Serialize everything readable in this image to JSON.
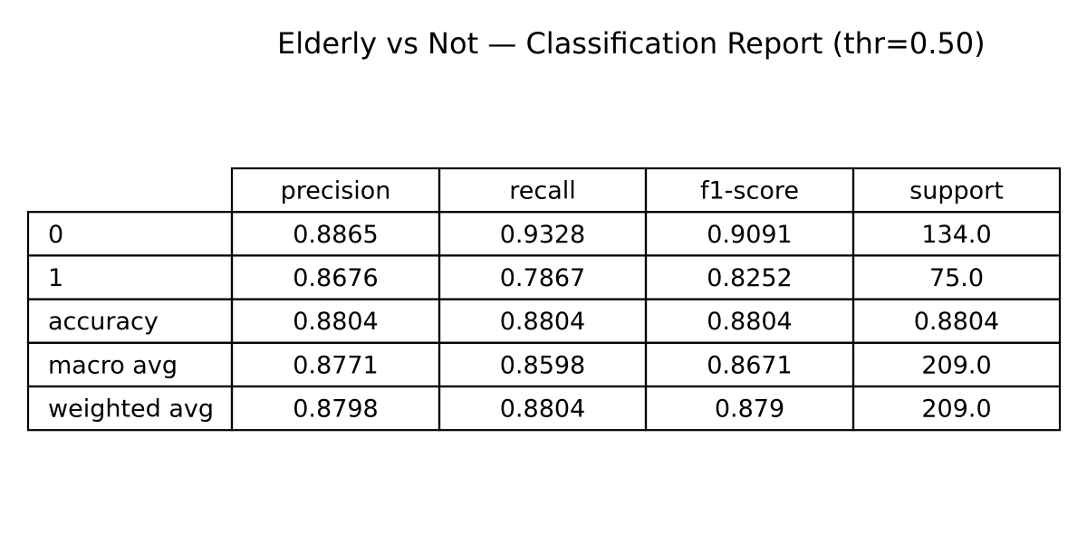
{
  "chart_data": {
    "type": "table",
    "title": "Elderly vs Not — Classification Report (thr=0.50)",
    "columns": [
      "precision",
      "recall",
      "f1-score",
      "support"
    ],
    "rows": [
      {
        "label": "0",
        "values": [
          "0.8865",
          "0.9328",
          "0.9091",
          "134.0"
        ]
      },
      {
        "label": "1",
        "values": [
          "0.8676",
          "0.7867",
          "0.8252",
          "75.0"
        ]
      },
      {
        "label": "accuracy",
        "values": [
          "0.8804",
          "0.8804",
          "0.8804",
          "0.8804"
        ]
      },
      {
        "label": "macro avg",
        "values": [
          "0.8771",
          "0.8598",
          "0.8671",
          "209.0"
        ]
      },
      {
        "label": "weighted avg",
        "values": [
          "0.8798",
          "0.8804",
          "0.879",
          "209.0"
        ]
      }
    ]
  }
}
